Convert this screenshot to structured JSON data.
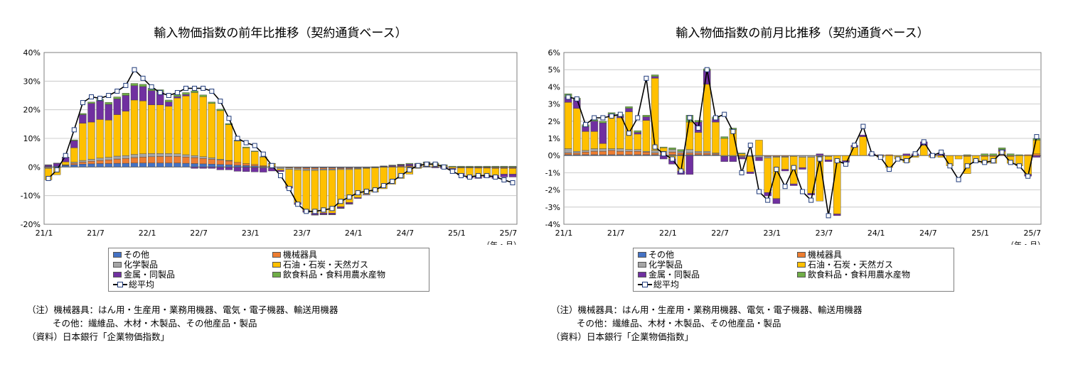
{
  "chart_data": [
    {
      "type": "bar",
      "stacked": true,
      "title": "輸入物価指数の前年比推移（契約通貨ベース）",
      "x": [
        "21/1",
        "21/2",
        "21/3",
        "21/4",
        "21/5",
        "21/6",
        "21/7",
        "21/8",
        "21/9",
        "21/10",
        "21/11",
        "21/12",
        "22/1",
        "22/2",
        "22/3",
        "22/4",
        "22/5",
        "22/6",
        "22/7",
        "22/8",
        "22/9",
        "22/10",
        "22/11",
        "22/12",
        "23/1",
        "23/2",
        "23/3",
        "23/4",
        "23/5",
        "23/6",
        "23/7",
        "23/8",
        "23/9",
        "23/10",
        "23/11",
        "23/12",
        "24/1",
        "24/2",
        "24/3",
        "24/4",
        "24/5",
        "24/6",
        "24/7",
        "24/8",
        "24/9",
        "24/10",
        "24/11",
        "24/12",
        "25/1",
        "25/2",
        "25/3",
        "25/4",
        "25/5",
        "25/6",
        "25/7"
      ],
      "x_tick_labels": [
        "21/1",
        "21/7",
        "22/1",
        "22/7",
        "23/1",
        "23/7",
        "24/1",
        "24/7",
        "25/1",
        "25/7"
      ],
      "x_unit_label": "（年・月）",
      "y_unit": "%",
      "ylim": [
        -20,
        40
      ],
      "y_ticks": [
        -20,
        -10,
        0,
        10,
        20,
        30,
        40
      ],
      "y_tick_labels": [
        "-20%",
        "-10%",
        "0%",
        "10%",
        "20%",
        "30%",
        "40%"
      ],
      "grid": true,
      "legend_position": "bottom",
      "series": [
        {
          "name": "その他",
          "color": "#4472c4",
          "values": [
            0.2,
            0.3,
            0.5,
            0.8,
            1.0,
            1.1,
            1.2,
            1.2,
            1.3,
            1.3,
            1.4,
            1.4,
            1.4,
            1.4,
            1.4,
            1.4,
            1.3,
            1.2,
            1.1,
            1.0,
            0.9,
            0.8,
            0.6,
            0.5,
            0.4,
            0.2,
            0.1,
            0,
            -0.1,
            -0.2,
            -0.3,
            -0.3,
            -0.3,
            -0.3,
            -0.3,
            -0.3,
            -0.3,
            -0.2,
            -0.2,
            -0.1,
            0,
            0,
            0.1,
            0.1,
            0.1,
            0,
            0,
            0,
            -0.1,
            -0.1,
            -0.1,
            -0.1,
            -0.1,
            -0.1,
            -0.1
          ]
        },
        {
          "name": "機械器具",
          "color": "#ed7d31",
          "values": [
            -0.2,
            -0.1,
            0.2,
            0.5,
            0.7,
            0.9,
            1.1,
            1.3,
            1.5,
            1.7,
            1.9,
            2.1,
            2.2,
            2.3,
            2.3,
            2.3,
            2.2,
            2.1,
            1.9,
            1.7,
            1.5,
            1.3,
            1.0,
            0.7,
            0.5,
            0.3,
            0.1,
            -0.1,
            -0.2,
            -0.3,
            -0.4,
            -0.4,
            -0.4,
            -0.4,
            -0.3,
            -0.3,
            -0.2,
            -0.1,
            0,
            0.1,
            0.2,
            0.3,
            0.3,
            0.3,
            0.2,
            0.1,
            0,
            0,
            -0.1,
            -0.1,
            -0.2,
            -0.2,
            -0.2,
            -0.2,
            -0.2
          ]
        },
        {
          "name": "化学製品",
          "color": "#a5a5a5",
          "values": [
            -0.3,
            -0.1,
            0.1,
            0.4,
            0.6,
            0.7,
            0.8,
            0.9,
            1.0,
            1.0,
            1.1,
            1.1,
            1.1,
            1.0,
            1.0,
            0.9,
            0.8,
            0.7,
            0.6,
            0.5,
            0.3,
            0.2,
            0,
            -0.1,
            -0.2,
            -0.3,
            -0.4,
            -0.5,
            -0.5,
            -0.5,
            -0.5,
            -0.5,
            -0.4,
            -0.4,
            -0.3,
            -0.3,
            -0.2,
            -0.2,
            -0.1,
            0,
            0,
            0.1,
            0.1,
            0.1,
            0,
            0,
            0,
            0,
            -0.1,
            -0.1,
            -0.1,
            -0.1,
            -0.2,
            -0.2,
            -0.2
          ]
        },
        {
          "name": "石油・石炭・天然ガス",
          "color": "#ffc000",
          "values": [
            -4.0,
            -2.5,
            1.0,
            5.0,
            13.0,
            13.0,
            13.5,
            13.0,
            14.5,
            15.5,
            19.0,
            18.5,
            17.0,
            17.0,
            16.5,
            19.5,
            20.5,
            22.0,
            21.0,
            19.0,
            17.0,
            12.5,
            7.5,
            5.5,
            4.5,
            3.0,
            1.0,
            -0.5,
            -6.0,
            -11.5,
            -14.0,
            -15.0,
            -15.0,
            -15.0,
            -13.0,
            -11.5,
            -10.0,
            -9.0,
            -8.5,
            -7.5,
            -6.0,
            -4.0,
            -2.5,
            -0.5,
            1.0,
            1.0,
            0.5,
            -0.5,
            -2.0,
            -3.0,
            -3.0,
            -2.5,
            -2.5,
            -2.0,
            -2.0
          ]
        },
        {
          "name": "金属・同製品",
          "color": "#7030a0",
          "values": [
            0.5,
            1.0,
            1.5,
            2.5,
            3.0,
            6.5,
            6.5,
            5.5,
            5.5,
            5.5,
            5.0,
            5.0,
            5.0,
            4.5,
            1.5,
            0.5,
            0.5,
            -0.5,
            -0.5,
            -0.5,
            -1.0,
            -1.0,
            -1.5,
            -1.5,
            -1.5,
            -1.5,
            -1.0,
            -0.5,
            -0.5,
            -0.5,
            -0.5,
            -0.5,
            -0.5,
            -0.5,
            -0.5,
            -0.5,
            -0.3,
            -0.2,
            0,
            0.2,
            0.3,
            0.4,
            0.5,
            0.5,
            0.2,
            -0.3,
            -0.5,
            -0.5,
            -0.5,
            -0.6,
            -0.6,
            -0.8,
            -1.0,
            -1.0,
            -1.0
          ]
        },
        {
          "name": "飲食料品・食料用農水産物",
          "color": "#70ad47",
          "values": [
            0.1,
            0.1,
            0.2,
            0.3,
            0.4,
            0.5,
            0.6,
            0.7,
            0.7,
            0.8,
            0.8,
            0.8,
            0.8,
            0.8,
            0.7,
            0.7,
            0.7,
            0.6,
            0.6,
            0.5,
            0.5,
            0.4,
            0.3,
            0.3,
            0.2,
            0.1,
            0.1,
            0,
            -0.1,
            -0.1,
            -0.1,
            -0.1,
            -0.1,
            -0.1,
            -0.1,
            -0.1,
            0,
            0,
            0.1,
            0.1,
            0.2,
            0.2,
            0.3,
            0.3,
            0.3,
            0.3,
            0.3,
            0.3,
            0.3,
            0.3,
            0.3,
            0.3,
            0.3,
            0.3,
            0.3
          ]
        },
        {
          "name": "総平均",
          "type": "line",
          "color": "#000000",
          "marker": "square",
          "values": [
            -4.0,
            -1.0,
            4.0,
            13.0,
            22.5,
            24.5,
            24.0,
            25.0,
            26.5,
            28.5,
            34.0,
            31.0,
            28.0,
            26.0,
            25.0,
            26.0,
            27.5,
            27.5,
            27.5,
            26.5,
            23.0,
            17.0,
            10.0,
            8.5,
            7.5,
            4.5,
            0.5,
            -3.0,
            -7.5,
            -13.0,
            -15.5,
            -15.5,
            -15.0,
            -14.5,
            -12.0,
            -10.5,
            -9.0,
            -8.5,
            -8.0,
            -6.5,
            -5.0,
            -3.0,
            -1.0,
            0.5,
            1.0,
            1.0,
            0.0,
            -1.5,
            -3.0,
            -3.5,
            -3.0,
            -3.0,
            -3.5,
            -4.5,
            -5.5
          ]
        }
      ]
    },
    {
      "type": "bar",
      "stacked": true,
      "title": "輸入物価指数の前月比推移（契約通貨ベース）",
      "x": [
        "21/1",
        "21/2",
        "21/3",
        "21/4",
        "21/5",
        "21/6",
        "21/7",
        "21/8",
        "21/9",
        "21/10",
        "21/11",
        "21/12",
        "22/1",
        "22/2",
        "22/3",
        "22/4",
        "22/5",
        "22/6",
        "22/7",
        "22/8",
        "22/9",
        "22/10",
        "22/11",
        "22/12",
        "23/1",
        "23/2",
        "23/3",
        "23/4",
        "23/5",
        "23/6",
        "23/7",
        "23/8",
        "23/9",
        "23/10",
        "23/11",
        "23/12",
        "24/1",
        "24/2",
        "24/3",
        "24/4",
        "24/5",
        "24/6",
        "24/7",
        "24/8",
        "24/9",
        "24/10",
        "24/11",
        "24/12",
        "25/1",
        "25/2",
        "25/3",
        "25/4",
        "25/5",
        "25/6",
        "25/7"
      ],
      "x_tick_labels": [
        "21/1",
        "21/7",
        "22/1",
        "22/7",
        "23/1",
        "23/7",
        "24/1",
        "24/7",
        "25/1",
        "25/7"
      ],
      "x_unit_label": "（年・月）",
      "y_unit": "%",
      "ylim": [
        -4,
        6
      ],
      "y_ticks": [
        -4,
        -3,
        -2,
        -1,
        0,
        1,
        2,
        3,
        4,
        5,
        6
      ],
      "y_tick_labels": [
        "-4%",
        "-3%",
        "-2%",
        "-1%",
        "0%",
        "1%",
        "2%",
        "3%",
        "4%",
        "5%",
        "6%"
      ],
      "grid": true,
      "legend_position": "bottom",
      "series": [
        {
          "name": "その他",
          "color": "#4472c4",
          "values": [
            0.05,
            0.05,
            0.05,
            0.05,
            0.05,
            0.05,
            0.05,
            0.05,
            0.05,
            0.05,
            0.05,
            0.05,
            0.05,
            0.05,
            0.05,
            0.05,
            0.05,
            0.05,
            0,
            0,
            0,
            0,
            0,
            0,
            0,
            0,
            0,
            0,
            0,
            0,
            0,
            0,
            0,
            0,
            0,
            0,
            0,
            0,
            0,
            0,
            0,
            0,
            0,
            0,
            0,
            0,
            0,
            0,
            0,
            0,
            0,
            0,
            0,
            0,
            0
          ]
        },
        {
          "name": "機械器具",
          "color": "#ed7d31",
          "values": [
            0.1,
            0.1,
            0.15,
            0.2,
            0.2,
            0.25,
            0.2,
            0.2,
            0.2,
            0.15,
            0.1,
            0.1,
            0.15,
            0.1,
            0.1,
            0.1,
            0.1,
            0.05,
            0,
            0,
            -0.05,
            0,
            0,
            -0.05,
            -0.05,
            -0.05,
            0,
            0,
            0,
            0,
            0,
            0,
            0,
            0,
            0,
            0,
            0.05,
            0.05,
            0,
            0,
            0,
            0,
            0,
            0,
            0,
            0,
            -0.05,
            0,
            -0.05,
            -0.05,
            0.05,
            -0.05,
            0,
            0.05,
            0.1
          ]
        },
        {
          "name": "化学製品",
          "color": "#a5a5a5",
          "values": [
            0.25,
            0.1,
            0.1,
            0.15,
            0.15,
            0.1,
            0.15,
            0.1,
            0.1,
            0.05,
            0.15,
            0.1,
            0.15,
            0.1,
            0.2,
            0.1,
            0.1,
            0.05,
            -0.05,
            -0.05,
            -0.05,
            -0.05,
            -0.1,
            -0.1,
            -0.05,
            -0.05,
            -0.05,
            -0.1,
            -0.1,
            -0.05,
            -0.05,
            0,
            0,
            0,
            0,
            0,
            0,
            0,
            0,
            0,
            0,
            0,
            0,
            0,
            0,
            0,
            0,
            0,
            0,
            0,
            0,
            0,
            0,
            0,
            0
          ]
        },
        {
          "name": "石油・石炭・天然ガス",
          "color": "#ffc000",
          "values": [
            2.7,
            2.5,
            1.1,
            1.0,
            0.3,
            1.9,
            1.8,
            2.2,
            0.9,
            1.8,
            4.2,
            0.2,
            -0.2,
            -0.9,
            1.6,
            1.1,
            3.9,
            1.8,
            1.0,
            1.5,
            0.1,
            -0.9,
            0.9,
            -2.0,
            -2.4,
            -0.7,
            -1.6,
            -0.6,
            -2.1,
            -2.6,
            -0.2,
            -3.4,
            -0.3,
            0.5,
            1.1,
            0,
            -0.1,
            -0.7,
            -0.2,
            -0.4,
            -0.1,
            0.6,
            -0.1,
            -0.1,
            -0.6,
            -0.2,
            -1.0,
            -0.4,
            -0.4,
            -0.4,
            0.2,
            -0.4,
            -0.6,
            -1.1,
            0.8
          ]
        },
        {
          "name": "金属・同製品",
          "color": "#7030a0",
          "values": [
            0.3,
            0.5,
            0.3,
            0.6,
            1.2,
            0.1,
            0.1,
            0.2,
            0.1,
            0.2,
            0.1,
            -0.2,
            -0.3,
            -0.2,
            -1.1,
            0.6,
            0.8,
            0.2,
            -0.3,
            -0.3,
            -0.1,
            -0.1,
            -0.2,
            -0.2,
            -0.3,
            -0.1,
            -0.1,
            -0.1,
            -0.1,
            0.1,
            -0.1,
            -0.1,
            -0.1,
            0.1,
            0.1,
            0.1,
            0,
            0,
            0,
            0.1,
            0.1,
            0.2,
            0.1,
            0.1,
            0,
            0,
            0,
            0,
            0,
            0,
            0.1,
            0,
            0,
            -0.1,
            -0.1
          ]
        },
        {
          "name": "飲食料品・食料用農水産物",
          "color": "#70ad47",
          "values": [
            0.2,
            0.1,
            0.1,
            0.1,
            0.1,
            0.1,
            0.1,
            0.1,
            0.1,
            0.1,
            0.1,
            0.05,
            0.1,
            0.1,
            0.4,
            0.1,
            0.1,
            0.1,
            0.1,
            0.1,
            0.05,
            0,
            0,
            0,
            0,
            0,
            0,
            0,
            0,
            0,
            0,
            0,
            0,
            0,
            0,
            0,
            0,
            0,
            0,
            0,
            0,
            0,
            0,
            0.05,
            0,
            0,
            0.05,
            0,
            0.1,
            0.1,
            0.1,
            0.1,
            0.05,
            0,
            0.1
          ]
        },
        {
          "name": "総平均",
          "type": "line",
          "color": "#000000",
          "marker": "square",
          "values": [
            3.4,
            3.3,
            1.8,
            2.2,
            2.2,
            2.3,
            2.4,
            1.3,
            2.2,
            4.5,
            0.5,
            0.1,
            -0.2,
            -0.9,
            2.2,
            1.6,
            5.0,
            2.2,
            2.4,
            1.4,
            -1.0,
            0.6,
            -2.1,
            -2.6,
            -0.8,
            -1.8,
            -0.7,
            -2.1,
            -2.6,
            -0.2,
            -3.5,
            -0.3,
            -0.5,
            0.6,
            1.7,
            0.1,
            -0.1,
            -0.8,
            -0.2,
            -0.3,
            0.1,
            0.8,
            0,
            0.2,
            -0.6,
            -1.4,
            -0.6,
            -0.3,
            -0.4,
            -0.3,
            0.2,
            -0.4,
            -0.6,
            -1.2,
            1.1
          ]
        }
      ]
    }
  ],
  "legend": {
    "items": [
      {
        "label": "その他",
        "color": "#4472c4"
      },
      {
        "label": "機械器具",
        "color": "#ed7d31"
      },
      {
        "label": "化学製品",
        "color": "#a5a5a5"
      },
      {
        "label": "石油・石炭・天然ガス",
        "color": "#ffc000"
      },
      {
        "label": "金属・同製品",
        "color": "#7030a0"
      },
      {
        "label": "飲食料品・食料用農水産物",
        "color": "#70ad47"
      },
      {
        "label": "総平均",
        "color": "#000000"
      }
    ]
  },
  "notes": {
    "line1": "（注）機械器具：はん用・生産用・業務用機器、電気・電子機器、輸送用機器",
    "line2": "その他：繊維品、木材・木製品、その他産品・製品",
    "line3": "（資料）日本銀行「企業物価指数」"
  }
}
